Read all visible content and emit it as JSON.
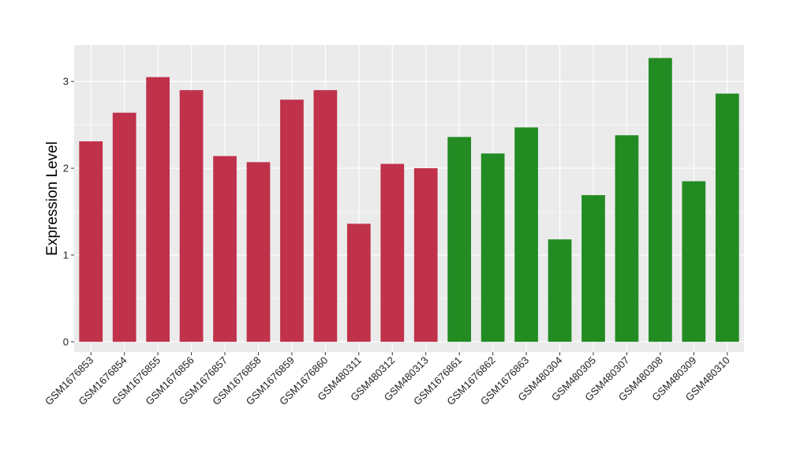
{
  "chart_data": {
    "type": "bar",
    "title": "",
    "xlabel": "",
    "ylabel": "Expression Level",
    "ylim": [
      -0.12,
      3.42
    ],
    "yticks": [
      0,
      1,
      2,
      3
    ],
    "grid": true,
    "legend": "none",
    "panel_color": "#EBEBEB",
    "grid_color": "#FFFFFF",
    "categories": [
      "GSM1676853",
      "GSM1676854",
      "GSM1676855",
      "GSM1676856",
      "GSM1676857",
      "GSM1676858",
      "GSM1676859",
      "GSM1676860",
      "GSM480311",
      "GSM480312",
      "GSM480313",
      "GSM1676861",
      "GSM1676862",
      "GSM1676863",
      "GSM480304",
      "GSM480305",
      "GSM480307",
      "GSM480308",
      "GSM480309",
      "GSM480310"
    ],
    "values": [
      2.31,
      2.64,
      3.05,
      2.9,
      2.14,
      2.07,
      2.79,
      2.9,
      1.36,
      2.05,
      2.0,
      2.36,
      2.17,
      2.47,
      1.18,
      1.69,
      2.38,
      3.27,
      1.85,
      2.86
    ],
    "colors": [
      "#C0314A",
      "#C0314A",
      "#C0314A",
      "#C0314A",
      "#C0314A",
      "#C0314A",
      "#C0314A",
      "#C0314A",
      "#C0314A",
      "#C0314A",
      "#C0314A",
      "#228B22",
      "#228B22",
      "#228B22",
      "#228B22",
      "#228B22",
      "#228B22",
      "#228B22",
      "#228B22",
      "#228B22"
    ]
  }
}
